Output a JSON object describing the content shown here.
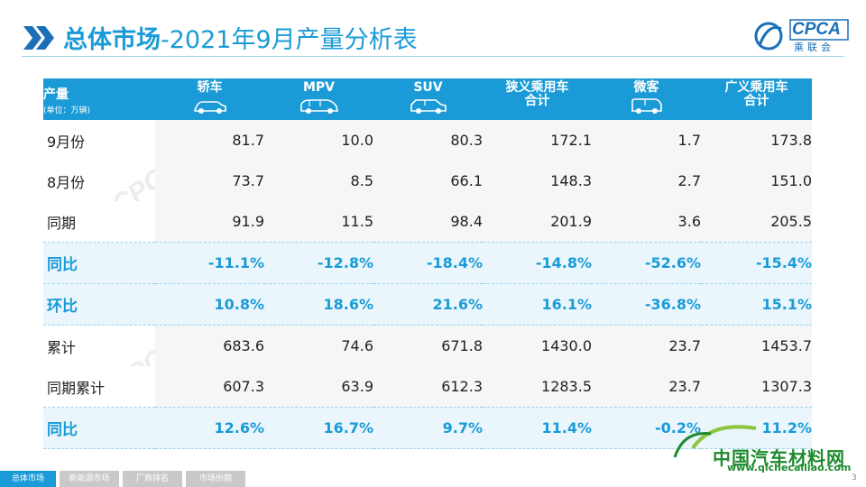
{
  "title": {
    "main": "总体市场",
    "sub": "-2021年9月产量分析表"
  },
  "logo": {
    "text": "CPCA",
    "subtext": "乘联会"
  },
  "table": {
    "header": {
      "first": {
        "label": "产量",
        "unit": "(单位：万辆)"
      },
      "columns": [
        {
          "label": "轿车",
          "icon": "sedan-icon"
        },
        {
          "label": "MPV",
          "icon": "mpv-icon"
        },
        {
          "label": "SUV",
          "icon": "suv-icon"
        },
        {
          "label": "狭义乘用车合计",
          "line1": "狭义乘用车",
          "line2": "合计"
        },
        {
          "label": "微客",
          "icon": "minivan-icon"
        },
        {
          "label": "广义乘用车合计",
          "line1": "广义乘用车",
          "line2": "合计"
        }
      ]
    },
    "rows": [
      {
        "label": "9月份",
        "values": [
          "81.7",
          "10.0",
          "80.3",
          "172.1",
          "1.7",
          "173.8"
        ],
        "highlight": false
      },
      {
        "label": "8月份",
        "values": [
          "73.7",
          "8.5",
          "66.1",
          "148.3",
          "2.7",
          "151.0"
        ],
        "highlight": false
      },
      {
        "label": "同期",
        "values": [
          "91.9",
          "11.5",
          "98.4",
          "201.9",
          "3.6",
          "205.5"
        ],
        "highlight": false
      },
      {
        "label": "同比",
        "values": [
          "-11.1%",
          "-12.8%",
          "-18.4%",
          "-14.8%",
          "-52.6%",
          "-15.4%"
        ],
        "highlight": true
      },
      {
        "label": "环比",
        "values": [
          "10.8%",
          "18.6%",
          "21.6%",
          "16.1%",
          "-36.8%",
          "15.1%"
        ],
        "highlight": true
      },
      {
        "label": "累计",
        "values": [
          "683.6",
          "74.6",
          "671.8",
          "1430.0",
          "23.7",
          "1453.7"
        ],
        "highlight": false
      },
      {
        "label": "同期累计",
        "values": [
          "607.3",
          "63.9",
          "612.3",
          "1283.5",
          "23.7",
          "1307.3"
        ],
        "highlight": false
      },
      {
        "label": "同比",
        "values": [
          "12.6%",
          "16.7%",
          "9.7%",
          "11.4%",
          "-0.2%",
          "11.2%"
        ],
        "highlight": true
      }
    ]
  },
  "footer": {
    "tabs": [
      "总体市场",
      "新能源市场",
      "厂商排名",
      "市场份额"
    ],
    "page": "3"
  },
  "watermark": {
    "brand_cn": "中国汽车材料网",
    "url": "www.qichecailiao.com"
  },
  "colors": {
    "accent": "#1a9bd7",
    "brand_green": "#1e8a2e"
  }
}
